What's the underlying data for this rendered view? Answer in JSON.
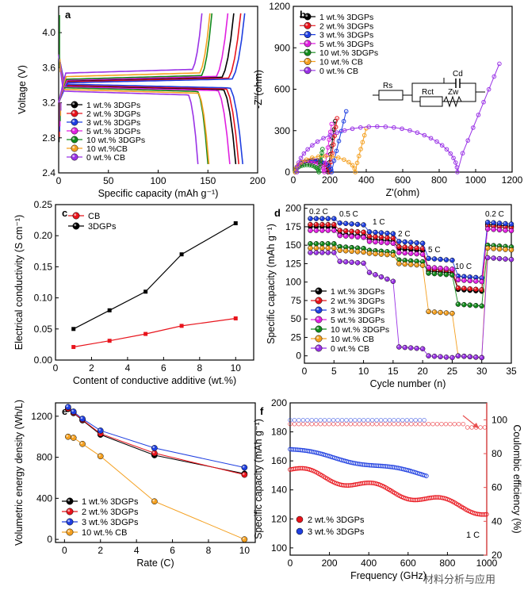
{
  "colors": {
    "black": "#000000",
    "red": "#e8141c",
    "blue": "#1f3fe0",
    "magenta": "#e020e0",
    "green": "#128a1c",
    "orange": "#f4a020",
    "purple": "#9a33e6",
    "coulomb": "#e85050"
  },
  "watermark": "材料分析与应用",
  "chart_data": [
    {
      "panel": "a",
      "type": "line",
      "xlabel": "Specific capacity (mAh g⁻¹)",
      "ylabel": "Voltage (V)",
      "xlim": [
        0,
        200
      ],
      "ylim": [
        2.4,
        4.3
      ],
      "xticks": [
        "0",
        "50",
        "100",
        "150",
        "200"
      ],
      "yticks": [
        "2.4",
        "2.8",
        "3.2",
        "3.6",
        "4.0"
      ],
      "legend": [
        "1 wt.% 3DGPs",
        "2 wt.% 3DGPs",
        "3 wt.% 3DGPs",
        "5 wt.% 3DGPs",
        "10 wt.% 3DGPs",
        "10 wt.%CB",
        "0 wt.% CB"
      ],
      "series": [
        {
          "name": "1 wt.% 3DGPs",
          "color": "black",
          "charge_end": 176,
          "discharge_end": 178,
          "plateau_ch": 3.47,
          "plateau_dis": 3.37
        },
        {
          "name": "2 wt.% 3DGPs",
          "color": "red",
          "charge_end": 183,
          "discharge_end": 181,
          "plateau_ch": 3.46,
          "plateau_dis": 3.38
        },
        {
          "name": "3 wt.% 3DGPs",
          "color": "blue",
          "charge_end": 187,
          "discharge_end": 185,
          "plateau_ch": 3.45,
          "plateau_dis": 3.39
        },
        {
          "name": "5 wt.% 3DGPs",
          "color": "magenta",
          "charge_end": 170,
          "discharge_end": 172,
          "plateau_ch": 3.48,
          "plateau_dis": 3.36
        },
        {
          "name": "10 wt.% 3DGPs",
          "color": "green",
          "charge_end": 154,
          "discharge_end": 150,
          "plateau_ch": 3.49,
          "plateau_dis": 3.35
        },
        {
          "name": "10 wt.%CB",
          "color": "orange",
          "charge_end": 152,
          "discharge_end": 151,
          "plateau_ch": 3.52,
          "plateau_dis": 3.33
        },
        {
          "name": "0 wt.% CB",
          "color": "purple",
          "charge_end": 144,
          "discharge_end": 140,
          "plateau_ch": 3.56,
          "plateau_dis": 3.31
        }
      ]
    },
    {
      "panel": "b",
      "type": "scatter",
      "xlabel": "Z'(ohm)",
      "ylabel": "-Z\"(ohm)",
      "xlim": [
        0,
        1200
      ],
      "ylim": [
        0,
        1200
      ],
      "xticks": [
        "0",
        "200",
        "400",
        "600",
        "800",
        "1000",
        "1200"
      ],
      "yticks": [
        "0",
        "300",
        "600",
        "900",
        "1200"
      ],
      "legend": [
        "1 wt.% 3DGPs",
        "2 wt.% 3DGPs",
        "3 wt.% 3DGPs",
        "5 wt.% 3DGPs",
        "10 wt.% 3DGPs",
        "10 wt.% CB",
        "0 wt.% CB"
      ],
      "circuit_labels": [
        "Rs",
        "Cd",
        "Rct",
        "Zw"
      ],
      "series": [
        {
          "name": "1 wt.% 3DGPs",
          "color": "black",
          "r0": 10,
          "d": 180,
          "k": 0.9,
          "tailx": 230,
          "taily": 360
        },
        {
          "name": "2 wt.% 3DGPs",
          "color": "red",
          "r0": 10,
          "d": 190,
          "k": 0.9,
          "tailx": 240,
          "taily": 380
        },
        {
          "name": "3 wt.% 3DGPs",
          "color": "blue",
          "r0": 10,
          "d": 200,
          "k": 0.85,
          "tailx": 290,
          "taily": 430
        },
        {
          "name": "5 wt.% 3DGPs",
          "color": "magenta",
          "r0": 10,
          "d": 160,
          "k": 0.85,
          "tailx": 210,
          "taily": 340
        },
        {
          "name": "10 wt.% 3DGPs",
          "color": "green",
          "r0": 10,
          "d": 130,
          "k": 0.8,
          "tailx": 160,
          "taily": 160
        },
        {
          "name": "10 wt.% CB",
          "color": "orange",
          "r0": 10,
          "d": 330,
          "k": 0.7,
          "tailx": 400,
          "taily": 300
        },
        {
          "name": "0 wt.% CB",
          "color": "purple",
          "r0": 20,
          "d": 880,
          "k": 0.75,
          "tailx": 1130,
          "taily": 740
        }
      ]
    },
    {
      "panel": "c",
      "type": "line",
      "xlabel": "Content of conductive additive (wt.%)",
      "ylabel": "Electrical conductivity (S cm⁻¹)",
      "xlim": [
        0,
        11
      ],
      "ylim": [
        0,
        0.25
      ],
      "xticks": [
        "0",
        "2",
        "4",
        "6",
        "8",
        "10"
      ],
      "yticks": [
        "0.00",
        "0.05",
        "0.10",
        "0.15",
        "0.20",
        "0.25"
      ],
      "legend": [
        "CB",
        "3DGPs"
      ],
      "series": [
        {
          "name": "CB",
          "color": "red",
          "x": [
            1,
            3,
            5,
            7,
            10
          ],
          "y": [
            0.021,
            0.031,
            0.042,
            0.055,
            0.067
          ]
        },
        {
          "name": "3DGPs",
          "color": "black",
          "x": [
            1,
            3,
            5,
            7,
            10
          ],
          "y": [
            0.05,
            0.08,
            0.11,
            0.17,
            0.22
          ]
        }
      ]
    },
    {
      "panel": "d",
      "type": "scatter",
      "xlabel": "Cycle number (n)",
      "ylabel": "Specific capacity (mAh g⁻¹)",
      "xlim": [
        0,
        35
      ],
      "ylim": [
        -10,
        205
      ],
      "xticks": [
        "0",
        "5",
        "10",
        "15",
        "20",
        "25",
        "30",
        "35"
      ],
      "yticks": [
        "0",
        "25",
        "50",
        "75",
        "100",
        "125",
        "150",
        "175",
        "200"
      ],
      "rate_labels": [
        "0.2 C",
        "0.5 C",
        "1 C",
        "2 C",
        "5 C",
        "10 C",
        "0.2 C"
      ],
      "legend": [
        "1 wt.% 3DGPs",
        "2 wt.% 3DGPs",
        "3 wt.% 3DGPs",
        "5 wt.% 3DGPs",
        "10 wt.% 3DGPs",
        "10 wt.% CB",
        "0 wt.% CB"
      ],
      "series": [
        {
          "name": "1 wt.% 3DGPs",
          "color": "black",
          "levels": [
            175,
            165,
            158,
            145,
            115,
            90,
            178
          ]
        },
        {
          "name": "2 wt.% 3DGPs",
          "color": "red",
          "levels": [
            178,
            170,
            162,
            148,
            118,
            92,
            176
          ]
        },
        {
          "name": "3 wt.% 3DGPs",
          "color": "blue",
          "levels": [
            186,
            180,
            168,
            155,
            132,
            108,
            181
          ]
        },
        {
          "name": "5 wt.% 3DGPs",
          "color": "magenta",
          "levels": [
            170,
            163,
            155,
            140,
            120,
            103,
            172
          ]
        },
        {
          "name": "10 wt.% 3DGPs",
          "color": "green",
          "levels": [
            152,
            148,
            143,
            130,
            112,
            70,
            150
          ]
        },
        {
          "name": "10 wt.% CB",
          "color": "orange",
          "levels": [
            146,
            143,
            139,
            125,
            60,
            0,
            146
          ]
        },
        {
          "name": "0 wt.% CB",
          "color": "purple",
          "levels": [
            140,
            128,
            105,
            12,
            0,
            0,
            133
          ]
        }
      ]
    },
    {
      "panel": "e",
      "type": "line",
      "xlabel": "Rate (C)",
      "ylabel": "Volumetric energy density (Wh/L)",
      "xlim": [
        -0.5,
        10.6
      ],
      "ylim": [
        -30,
        1330
      ],
      "xticks": [
        "0",
        "2",
        "4",
        "6",
        "8",
        "10"
      ],
      "yticks": [
        "0",
        "400",
        "800",
        "1200"
      ],
      "legend": [
        "1 wt.% 3DGPs",
        "2 wt.% 3DGPs",
        "3 wt.% 3DGPs",
        "10 wt.% CB"
      ],
      "x": [
        0.2,
        0.5,
        1,
        2,
        5,
        10
      ],
      "series": [
        {
          "name": "1 wt.% 3DGPs",
          "color": "black",
          "values": [
            1270,
            1230,
            1160,
            1020,
            820,
            640
          ]
        },
        {
          "name": "2 wt.% 3DGPs",
          "color": "red",
          "values": [
            1275,
            1235,
            1165,
            1030,
            840,
            630
          ]
        },
        {
          "name": "3 wt.% 3DGPs",
          "color": "blue",
          "values": [
            1290,
            1245,
            1175,
            1060,
            890,
            700
          ]
        },
        {
          "name": "10 wt.% CB",
          "color": "orange",
          "values": [
            1000,
            990,
            930,
            810,
            370,
            0
          ]
        }
      ]
    },
    {
      "panel": "f",
      "type": "scatter",
      "xlabel": "Frequency (GHz)",
      "ylabel": "Specific capacity (mAh g⁻¹)",
      "y2label": "Coulombic efficiency (%)",
      "xlim": [
        0,
        1000
      ],
      "ylim": [
        95,
        200
      ],
      "y2lim": [
        20,
        110
      ],
      "xticks": [
        "0",
        "200",
        "400",
        "600",
        "800",
        "1000"
      ],
      "yticks": [
        "100",
        "120",
        "140",
        "160",
        "180",
        "200"
      ],
      "y2ticks": [
        "20",
        "40",
        "60",
        "80",
        "100"
      ],
      "legend": [
        "2 wt.% 3DGPs",
        "3 wt.% 3DGPs"
      ],
      "rate_note": "1 C",
      "series": [
        {
          "name": "2 wt.% 3DGPs",
          "color": "red",
          "start": 154,
          "end": 125,
          "cycles": 1000
        },
        {
          "name": "3 wt.% 3DGPs",
          "color": "blue",
          "start": 168,
          "end": 150,
          "cycles": 700
        }
      ],
      "coulombic": [
        {
          "name": "2 wt.% 3DGPs",
          "value": 97.5,
          "cycles": 1000
        },
        {
          "name": "3 wt.% 3DGPs",
          "value": 99.8,
          "cycles": 700
        }
      ]
    }
  ]
}
